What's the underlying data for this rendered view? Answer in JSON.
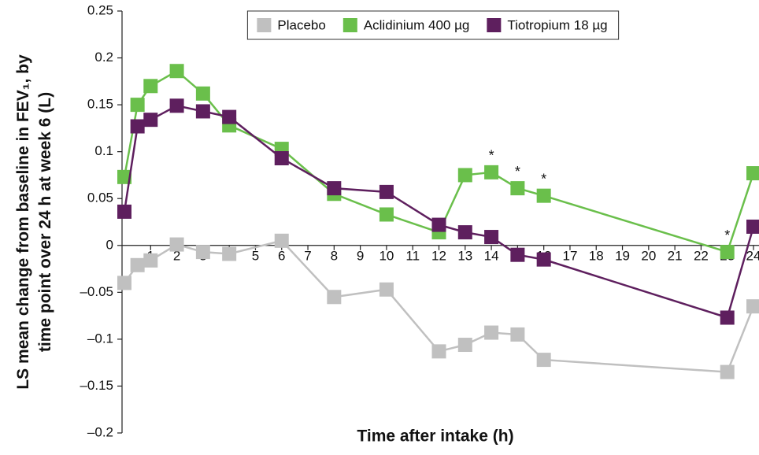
{
  "chart_data": {
    "type": "line",
    "x_label": "Time after intake (h)",
    "y_label": [
      "LS mean change from baseline in FEV₁, by",
      "time point over 24 h at week 6 (L)"
    ],
    "x": [
      0,
      0.5,
      1,
      2,
      3,
      4,
      6,
      8,
      10,
      12,
      13,
      14,
      15,
      16,
      23,
      24
    ],
    "series": [
      {
        "name": "Placebo",
        "color": "#c0c0c0",
        "values": [
          -0.04,
          -0.021,
          -0.016,
          0.001,
          -0.007,
          -0.009,
          0.005,
          -0.055,
          -0.047,
          -0.113,
          -0.106,
          -0.093,
          -0.095,
          -0.122,
          -0.135,
          -0.065
        ]
      },
      {
        "name": "Aclidinium 400 µg",
        "color": "#6abf4b",
        "values": [
          0.073,
          0.15,
          0.17,
          0.186,
          0.162,
          0.128,
          0.103,
          0.055,
          0.033,
          0.014,
          0.075,
          0.078,
          0.061,
          0.053,
          -0.007,
          0.077
        ]
      },
      {
        "name": "Tiotropium 18 µg",
        "color": "#5e1f5e",
        "values": [
          0.036,
          0.127,
          0.134,
          0.149,
          0.143,
          0.137,
          0.093,
          0.061,
          0.057,
          0.022,
          0.014,
          0.009,
          -0.01,
          -0.015,
          -0.077,
          0.02
        ]
      }
    ],
    "annotations": [
      {
        "text": "*",
        "x": 14
      },
      {
        "text": "*",
        "x": 15
      },
      {
        "text": "*",
        "x": 16
      },
      {
        "text": "*",
        "x": 23
      }
    ],
    "xlim": [
      0,
      24
    ],
    "xticks": [
      1,
      2,
      3,
      4,
      5,
      6,
      7,
      8,
      9,
      10,
      11,
      12,
      13,
      14,
      15,
      16,
      17,
      18,
      19,
      20,
      21,
      22,
      23,
      24
    ],
    "ylim": [
      -0.2,
      0.25
    ],
    "yticks": [
      {
        "value": -0.2,
        "label": "–0.2"
      },
      {
        "value": -0.15,
        "label": "–0.15"
      },
      {
        "value": -0.1,
        "label": "–0.1"
      },
      {
        "value": -0.05,
        "label": "–0.05"
      },
      0,
      0.05,
      0.1,
      0.15,
      0.2,
      0.25
    ],
    "grid": false,
    "legend": "top"
  }
}
